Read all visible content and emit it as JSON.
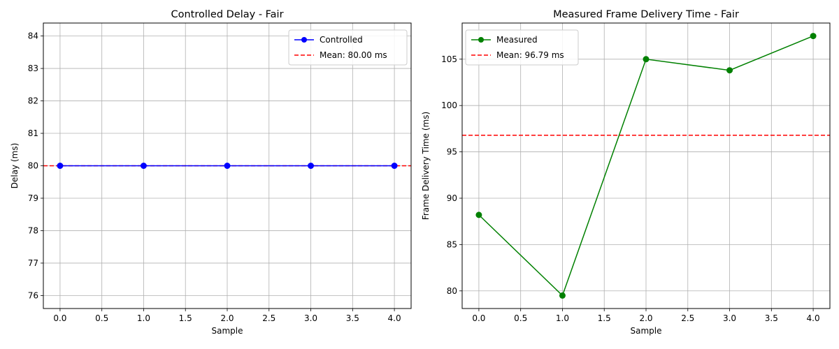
{
  "chart_data": [
    {
      "type": "line",
      "title": "Controlled Delay - Fair",
      "xlabel": "Sample",
      "ylabel": "Delay (ms)",
      "xlim": [
        -0.2,
        4.2
      ],
      "ylim": [
        75.6,
        84.4
      ],
      "xticks": [
        0.0,
        0.5,
        1.0,
        1.5,
        2.0,
        2.5,
        3.0,
        3.5,
        4.0
      ],
      "xtick_labels": [
        "0.0",
        "0.5",
        "1.0",
        "1.5",
        "2.0",
        "2.5",
        "3.0",
        "3.5",
        "4.0"
      ],
      "yticks": [
        76,
        77,
        78,
        79,
        80,
        81,
        82,
        83,
        84
      ],
      "ytick_labels": [
        "76",
        "77",
        "78",
        "79",
        "80",
        "81",
        "82",
        "83",
        "84"
      ],
      "grid": true,
      "legend_position": "top-right",
      "series": [
        {
          "name": "Controlled",
          "x": [
            0,
            1,
            2,
            3,
            4
          ],
          "y": [
            80,
            80,
            80,
            80,
            80
          ],
          "color": "#0000ff",
          "marker": "circle",
          "style": "solid"
        }
      ],
      "reference_lines": [
        {
          "name": "Mean: 80.00 ms",
          "y": 80.0,
          "color": "#ff0000",
          "style": "dashed"
        }
      ]
    },
    {
      "type": "line",
      "title": "Measured Frame Delivery Time - Fair",
      "xlabel": "Sample",
      "ylabel": "Frame Delivery Time (ms)",
      "xlim": [
        -0.2,
        4.2
      ],
      "ylim": [
        78.1,
        108.9
      ],
      "xticks": [
        0.0,
        0.5,
        1.0,
        1.5,
        2.0,
        2.5,
        3.0,
        3.5,
        4.0
      ],
      "xtick_labels": [
        "0.0",
        "0.5",
        "1.0",
        "1.5",
        "2.0",
        "2.5",
        "3.0",
        "3.5",
        "4.0"
      ],
      "yticks": [
        80,
        85,
        90,
        95,
        100,
        105
      ],
      "ytick_labels": [
        "80",
        "85",
        "90",
        "95",
        "100",
        "105"
      ],
      "grid": true,
      "legend_position": "top-left",
      "series": [
        {
          "name": "Measured",
          "x": [
            0,
            1,
            2,
            3,
            4
          ],
          "y": [
            88.2,
            79.5,
            105.0,
            103.8,
            107.5
          ],
          "color": "#008000",
          "marker": "circle",
          "style": "solid"
        }
      ],
      "reference_lines": [
        {
          "name": "Mean: 96.79 ms",
          "y": 96.79,
          "color": "#ff0000",
          "style": "dashed"
        }
      ]
    }
  ]
}
